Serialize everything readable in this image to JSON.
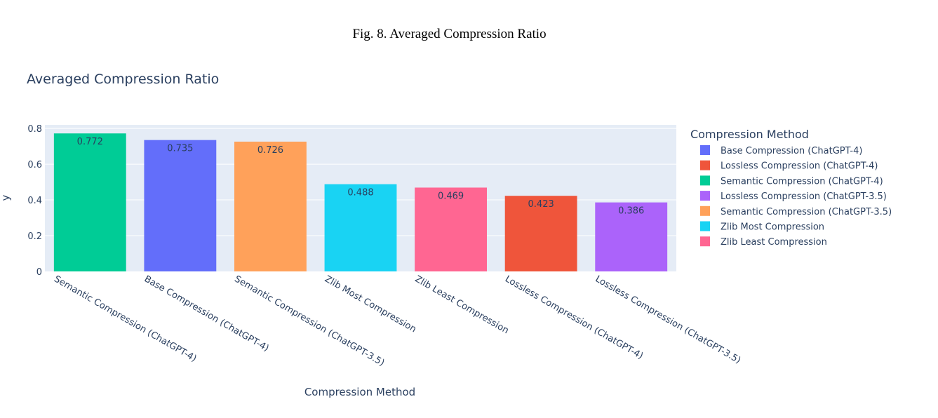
{
  "caption": "Fig. 8.  Averaged Compression Ratio",
  "chart_data": {
    "type": "bar",
    "title": "Averaged Compression Ratio",
    "xlabel": "Compression Method",
    "ylabel": "y",
    "ylim": [
      0,
      0.82
    ],
    "yticks": [
      0,
      0.2,
      0.4,
      0.6,
      0.8
    ],
    "ytick_labels": [
      "0",
      "0.2",
      "0.4",
      "0.6",
      "0.8"
    ],
    "grid": true,
    "legend_title": "Compression Method",
    "legend_position": "right",
    "categories": [
      "Semantic Compression (ChatGPT-4)",
      "Base Compression (ChatGPT-4)",
      "Semantic Compression (ChatGPT-3.5)",
      "Zlib Most Compression",
      "Zlib Least Compression",
      "Lossless Compression (ChatGPT-4)",
      "Lossless Compression (ChatGPT-3.5)"
    ],
    "values": [
      0.772,
      0.735,
      0.726,
      0.488,
      0.469,
      0.423,
      0.386
    ],
    "value_labels": [
      "0.772",
      "0.735",
      "0.726",
      "0.488",
      "0.469",
      "0.423",
      "0.386"
    ],
    "colors": [
      "#00cc96",
      "#636efa",
      "#ffa15a",
      "#19d3f3",
      "#ff6692",
      "#ef553b",
      "#ab63fa"
    ],
    "legend": [
      {
        "name": "Base Compression (ChatGPT-4)",
        "color": "#636efa"
      },
      {
        "name": "Lossless Compression (ChatGPT-4)",
        "color": "#ef553b"
      },
      {
        "name": "Semantic Compression (ChatGPT-4)",
        "color": "#00cc96"
      },
      {
        "name": "Lossless Compression (ChatGPT-3.5)",
        "color": "#ab63fa"
      },
      {
        "name": "Semantic Compression (ChatGPT-3.5)",
        "color": "#ffa15a"
      },
      {
        "name": "Zlib Most Compression",
        "color": "#19d3f3"
      },
      {
        "name": "Zlib Least Compression",
        "color": "#ff6692"
      }
    ]
  }
}
